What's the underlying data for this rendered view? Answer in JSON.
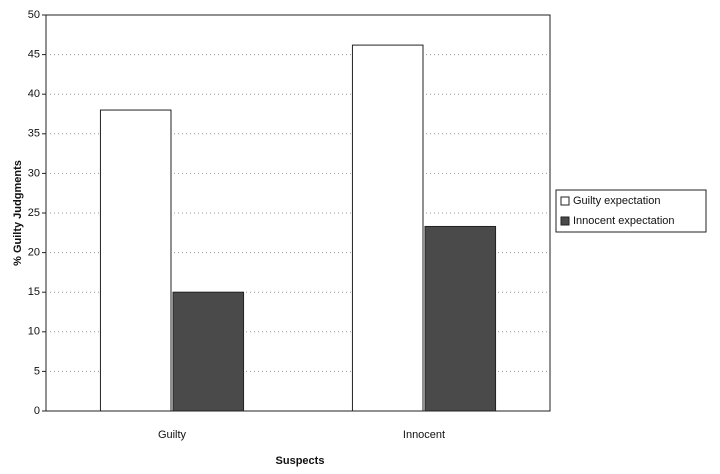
{
  "chart_data": {
    "type": "bar",
    "categories": [
      "Guilty",
      "Innocent"
    ],
    "series": [
      {
        "name": "Guilty expectation",
        "color": "#ffffff",
        "values": [
          38,
          46.2
        ]
      },
      {
        "name": "Innocent expectation",
        "color": "#4a4a4a",
        "values": [
          15,
          23.3
        ]
      }
    ],
    "xlabel": "Suspects",
    "ylabel": "% Guilty Judgments",
    "ylim": [
      0,
      50
    ],
    "yticks": [
      0,
      5,
      10,
      15,
      20,
      25,
      30,
      35,
      40,
      45,
      50
    ],
    "grid": true,
    "legend": "right"
  }
}
